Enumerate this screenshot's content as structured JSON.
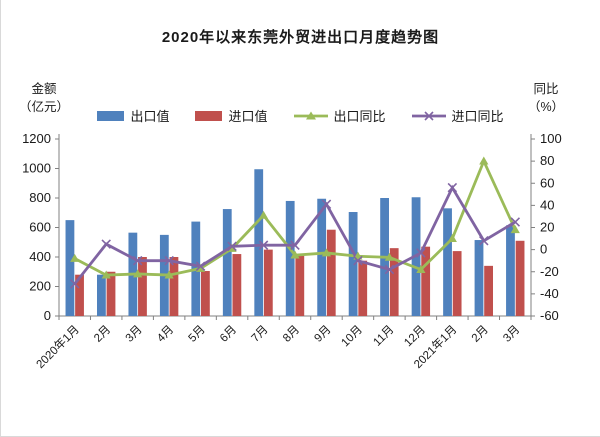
{
  "title": "2020年以来东莞外贸进出口月度趋势图",
  "left_axis": {
    "unit_line1": "金额",
    "unit_line2": "（亿元）",
    "min": 0,
    "max": 1200,
    "step": 200
  },
  "right_axis": {
    "unit_line1": "同比",
    "unit_line2": "（%）",
    "min": -60,
    "max": 100,
    "step": 20
  },
  "colors": {
    "export_bar": "#4f81bd",
    "import_bar": "#c0504d",
    "export_yoy_line": "#9bbb59",
    "import_yoy_line": "#8064a2",
    "axis_line": "#808080",
    "text": "#1a1a1a"
  },
  "chart_data": {
    "type": "bar+line combo",
    "title": "2020年以来东莞外贸进出口月度趋势图",
    "categories": [
      "2020年1月",
      "2月",
      "3月",
      "4月",
      "5月",
      "6月",
      "7月",
      "8月",
      "9月",
      "10月",
      "11月",
      "12月",
      "2021年1月",
      "2月",
      "3月"
    ],
    "left_ylim": [
      0,
      1200
    ],
    "left_step": 200,
    "right_ylim": [
      -60,
      100
    ],
    "right_step": 20,
    "grid": false,
    "legend_position": "top",
    "series": [
      {
        "name": "出口值",
        "type": "bar",
        "axis": "left",
        "color": "#4f81bd",
        "values": [
          650,
          280,
          565,
          550,
          640,
          725,
          995,
          780,
          795,
          705,
          800,
          805,
          730,
          515,
          615
        ]
      },
      {
        "name": "进口值",
        "type": "bar",
        "axis": "left",
        "color": "#c0504d",
        "values": [
          280,
          300,
          400,
          400,
          305,
          420,
          450,
          410,
          585,
          375,
          460,
          470,
          440,
          340,
          510
        ]
      },
      {
        "name": "出口同比",
        "type": "line",
        "marker": "triangle",
        "axis": "right",
        "color": "#9bbb59",
        "values": [
          -8,
          -23,
          -22,
          -23,
          -17,
          1,
          31,
          -5,
          -3,
          -6,
          -7,
          -18,
          10,
          80,
          18
        ]
      },
      {
        "name": "进口同比",
        "type": "line",
        "marker": "x",
        "axis": "right",
        "color": "#8064a2",
        "values": [
          -31,
          5,
          -10,
          -10,
          -15,
          3,
          4,
          4,
          41,
          -10,
          -18,
          -3,
          56,
          8,
          25
        ]
      }
    ]
  }
}
